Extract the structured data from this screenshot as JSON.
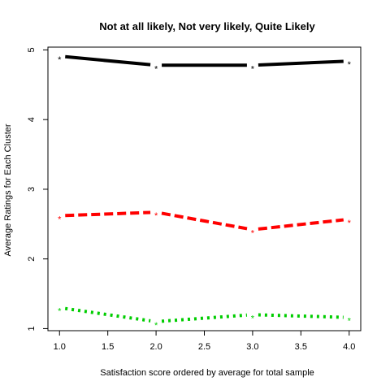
{
  "chart_data": {
    "type": "line",
    "title": "Not at all likely, Not very likely, Quite Likely",
    "xlabel": "Satisfaction score ordered by average for total sample",
    "ylabel": "Average Ratings for Each Cluster",
    "x": [
      1,
      2,
      3,
      4
    ],
    "xlim": [
      0.88,
      4.12
    ],
    "ylim": [
      0.97,
      5.04
    ],
    "xticks": [
      1.0,
      1.5,
      2.0,
      2.5,
      3.0,
      3.5,
      4.0
    ],
    "xtick_labels": [
      "1.0",
      "1.5",
      "2.0",
      "2.5",
      "3.0",
      "3.5",
      "4.0"
    ],
    "yticks": [
      1,
      2,
      3,
      4,
      5
    ],
    "ytick_labels": [
      "1",
      "2",
      "3",
      "4",
      "5"
    ],
    "grid": false,
    "marker_symbol": "*",
    "series": [
      {
        "color": "#000000",
        "dash": "solid",
        "values": [
          4.91,
          4.78,
          4.78,
          4.84
        ]
      },
      {
        "color": "#ff0000",
        "dash": "dashed",
        "values": [
          2.62,
          2.67,
          2.42,
          2.57
        ]
      },
      {
        "color": "#00cd00",
        "dash": "dotted",
        "values": [
          1.3,
          1.1,
          1.2,
          1.16
        ]
      }
    ]
  }
}
